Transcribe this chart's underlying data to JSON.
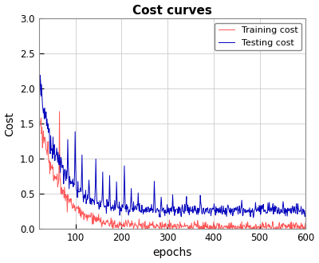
{
  "title": "Cost curves",
  "xlabel": "epochs",
  "ylabel": "Cost",
  "xlim": [
    20,
    600
  ],
  "ylim": [
    0,
    3
  ],
  "yticks": [
    0,
    0.5,
    1.0,
    1.5,
    2.0,
    2.5,
    3.0
  ],
  "xticks": [
    100,
    200,
    300,
    400,
    500,
    600
  ],
  "training_color": "#FF5555",
  "testing_color": "#0000BB",
  "legend_labels": [
    "Training cost",
    "Testing cost"
  ],
  "background_color": "#ffffff",
  "grid_color": "#cccccc",
  "seed": 1234,
  "n_epochs": 600,
  "figsize": [
    4.0,
    3.3
  ],
  "dpi": 100
}
